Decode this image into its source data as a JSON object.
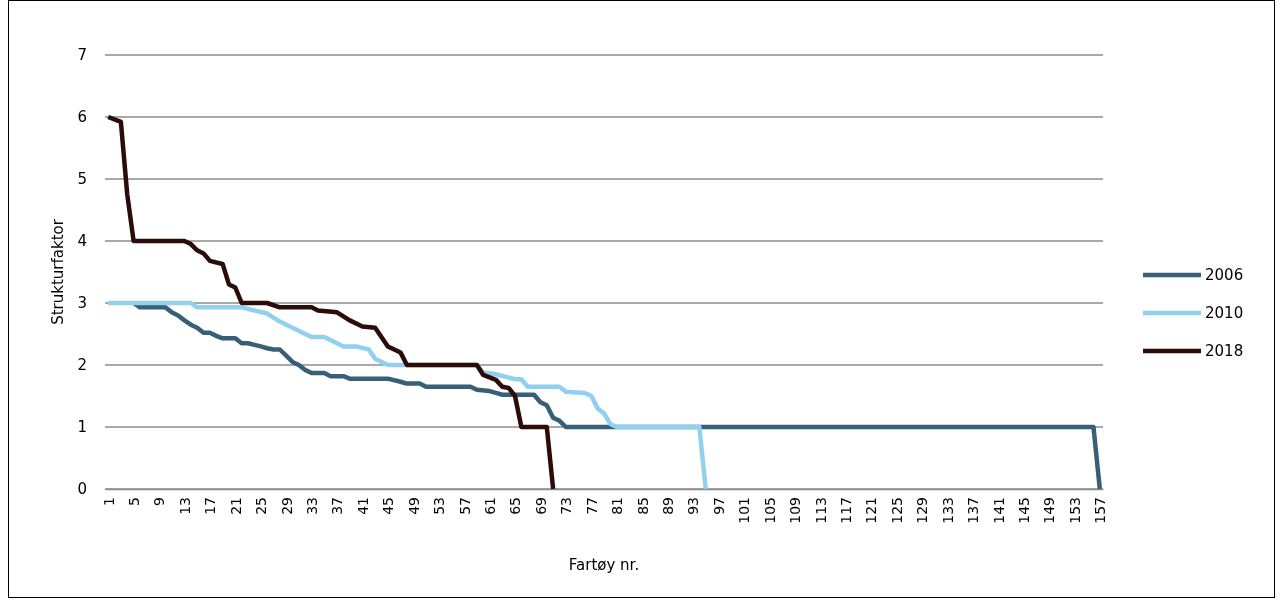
{
  "chart_data": {
    "type": "line",
    "xlabel": "Fartøy nr.",
    "ylabel": "Strukturfaktor",
    "xlim": [
      0.5,
      157.5
    ],
    "xticks": [
      1,
      5,
      9,
      13,
      17,
      21,
      25,
      29,
      33,
      37,
      41,
      45,
      49,
      53,
      57,
      61,
      65,
      69,
      73,
      77,
      81,
      85,
      89,
      93,
      97,
      101,
      105,
      109,
      113,
      117,
      121,
      125,
      129,
      133,
      137,
      141,
      145,
      149,
      153,
      157
    ],
    "ylim": [
      0,
      7
    ],
    "yticks": [
      0,
      1,
      2,
      3,
      4,
      5,
      6,
      7
    ],
    "grid": "y",
    "legend": "right",
    "marker": "none",
    "line_style": "solid",
    "series": [
      {
        "name": "2006",
        "color": "#376078",
        "x": [
          5,
          6,
          10,
          11,
          12,
          13,
          14,
          15,
          16,
          17,
          18,
          19,
          21,
          22,
          23,
          25,
          26,
          27,
          28,
          29,
          30,
          31,
          32,
          33,
          35,
          36,
          38,
          39,
          45,
          47,
          48,
          50,
          51,
          58,
          59,
          61,
          62,
          63,
          68,
          69,
          70,
          71,
          72,
          73,
          156,
          157
        ],
        "values": [
          3,
          2.93,
          2.93,
          2.85,
          2.8,
          2.72,
          2.65,
          2.6,
          2.52,
          2.52,
          2.47,
          2.43,
          2.43,
          2.35,
          2.35,
          2.3,
          2.27,
          2.25,
          2.25,
          2.15,
          2.05,
          2,
          1.92,
          1.87,
          1.87,
          1.82,
          1.82,
          1.78,
          1.78,
          1.73,
          1.7,
          1.7,
          1.65,
          1.65,
          1.6,
          1.58,
          1.55,
          1.52,
          1.52,
          1.4,
          1.35,
          1.15,
          1.1,
          1,
          1,
          0
        ]
      },
      {
        "name": "2010",
        "color": "#92d0f0",
        "x": [
          1,
          14,
          15,
          22,
          24,
          26,
          28,
          30,
          32,
          33,
          35,
          37,
          38,
          40,
          42,
          43,
          45,
          59,
          60,
          62,
          65,
          66,
          67,
          72,
          73,
          76,
          77,
          78,
          79,
          80,
          81,
          94,
          95
        ],
        "values": [
          3,
          3,
          2.93,
          2.93,
          2.88,
          2.83,
          2.7,
          2.6,
          2.5,
          2.45,
          2.45,
          2.35,
          2.3,
          2.3,
          2.25,
          2.1,
          2,
          2,
          1.88,
          1.85,
          1.77,
          1.77,
          1.65,
          1.65,
          1.57,
          1.55,
          1.5,
          1.3,
          1.22,
          1.05,
          1,
          1,
          0
        ]
      },
      {
        "name": "2018",
        "color": "#2b0c08",
        "x": [
          1,
          3,
          4,
          5,
          13,
          14,
          15,
          16,
          17,
          19,
          20,
          21,
          22,
          26,
          28,
          33,
          34,
          37,
          39,
          41,
          43,
          45,
          47,
          48,
          59,
          60,
          62,
          63,
          64,
          65,
          66,
          70,
          71
        ],
        "values": [
          6,
          5.92,
          4.75,
          4,
          4,
          3.95,
          3.85,
          3.8,
          3.68,
          3.63,
          3.3,
          3.25,
          3,
          3,
          2.93,
          2.93,
          2.88,
          2.85,
          2.72,
          2.62,
          2.6,
          2.3,
          2.2,
          2,
          2,
          1.84,
          1.76,
          1.65,
          1.63,
          1.5,
          1,
          1,
          0
        ]
      }
    ]
  }
}
